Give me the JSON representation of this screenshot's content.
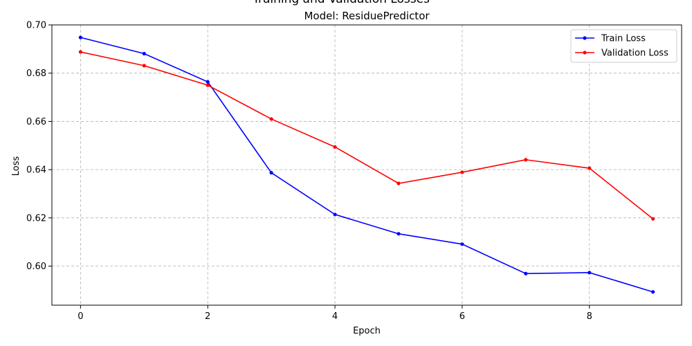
{
  "chart_data": {
    "type": "line",
    "title": "Training and Validation Losses",
    "subtitle": "Model: ResiduePredictor",
    "xlabel": "Epoch",
    "ylabel": "Loss",
    "x": [
      0,
      1,
      2,
      3,
      4,
      5,
      6,
      7,
      8,
      9
    ],
    "xlim": [
      -0.45,
      9.45
    ],
    "ylim": [
      0.5838,
      0.7
    ],
    "xticks": [
      0,
      2,
      4,
      6,
      8
    ],
    "yticks": [
      0.6,
      0.62,
      0.64,
      0.66,
      0.68,
      0.7
    ],
    "ytick_labels": [
      "0.60",
      "0.62",
      "0.64",
      "0.66",
      "0.68",
      "0.70"
    ],
    "grid": true,
    "legend_position": "top-right",
    "series": [
      {
        "name": "Train Loss",
        "color": "#0000ff",
        "values": [
          0.6948,
          0.6881,
          0.6764,
          0.6387,
          0.6214,
          0.6134,
          0.6091,
          0.5969,
          0.5973,
          0.5893
        ]
      },
      {
        "name": "Validation Loss",
        "color": "#ff0000",
        "values": [
          0.6888,
          0.6831,
          0.675,
          0.661,
          0.6494,
          0.6343,
          0.6389,
          0.6441,
          0.6406,
          0.6196
        ]
      }
    ]
  }
}
